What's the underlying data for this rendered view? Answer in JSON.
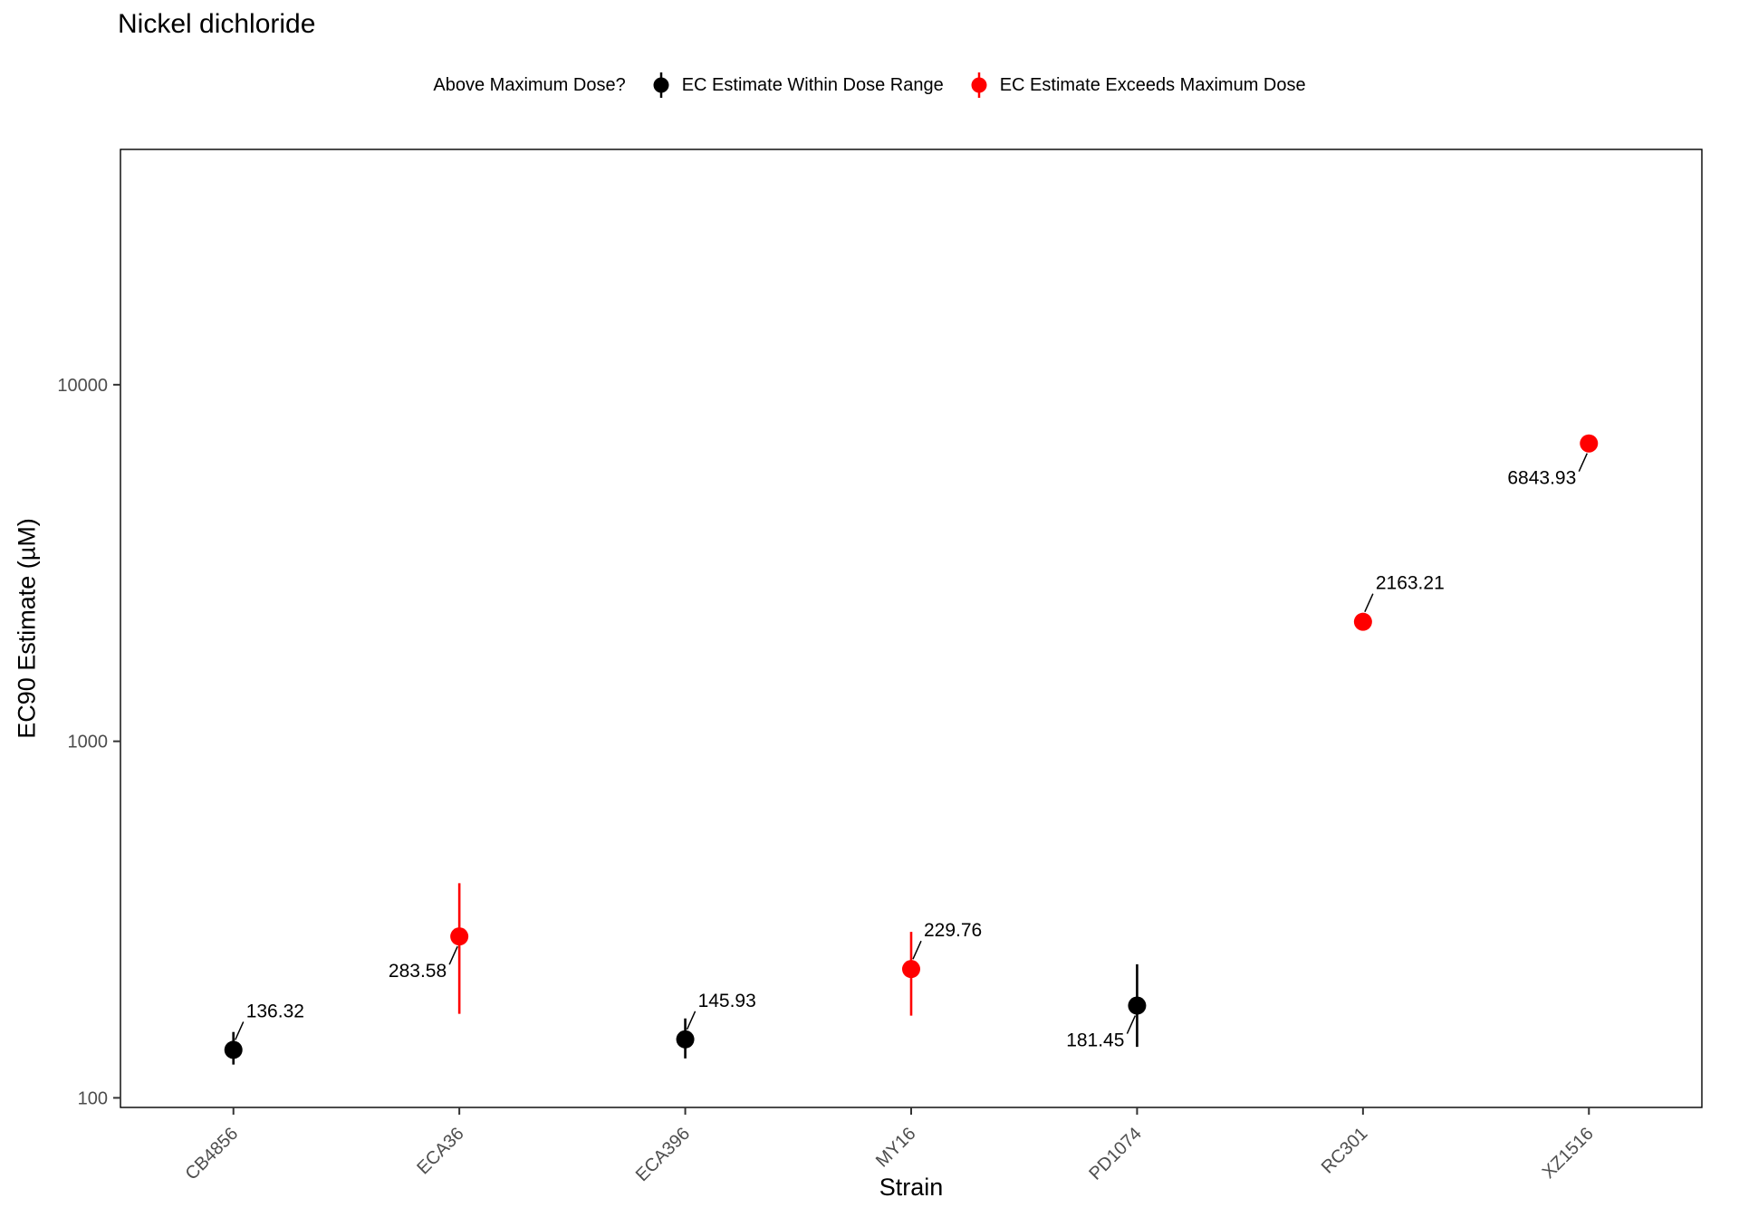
{
  "title": "Nickel dichloride",
  "legend": {
    "title": "Above Maximum Dose?",
    "items": [
      {
        "label": "EC Estimate Within Dose Range",
        "color": "#000000"
      },
      {
        "label": "EC Estimate Exceeds Maximum Dose",
        "color": "#FF0000"
      }
    ]
  },
  "chart_data": {
    "type": "scatter",
    "title": "Nickel dichloride",
    "xlabel": "Strain",
    "ylabel": "EC90 Estimate (µM)",
    "yscale": "log10",
    "ylim": [
      94,
      45700
    ],
    "yticks": [
      100,
      1000,
      10000
    ],
    "grid": false,
    "legend_position": "top",
    "categories": [
      "CB4856",
      "ECA36",
      "ECA396",
      "MY16",
      "PD1074",
      "RC301",
      "XZ1516"
    ],
    "points": [
      {
        "strain": "CB4856",
        "value": 136.32,
        "label": "136.32",
        "ci_lo": 124,
        "ci_hi": 153,
        "exceeds": false,
        "label_pos": "ne"
      },
      {
        "strain": "ECA36",
        "value": 283.58,
        "label": "283.58",
        "ci_lo": 172,
        "ci_hi": 400,
        "exceeds": true,
        "label_pos": "sw"
      },
      {
        "strain": "ECA396",
        "value": 145.93,
        "label": "145.93",
        "ci_lo": 129,
        "ci_hi": 167,
        "exceeds": false,
        "label_pos": "ne"
      },
      {
        "strain": "MY16",
        "value": 229.76,
        "label": "229.76",
        "ci_lo": 170,
        "ci_hi": 292,
        "exceeds": true,
        "label_pos": "ne"
      },
      {
        "strain": "PD1074",
        "value": 181.45,
        "label": "181.45",
        "ci_lo": 139,
        "ci_hi": 237,
        "exceeds": false,
        "label_pos": "sw"
      },
      {
        "strain": "RC301",
        "value": 2163.21,
        "label": "2163.21",
        "ci_lo": 2163.21,
        "ci_hi": 2163.21,
        "exceeds": true,
        "label_pos": "ne"
      },
      {
        "strain": "XZ1516",
        "value": 6843.93,
        "label": "6843.93",
        "ci_lo": 6843.93,
        "ci_hi": 6843.93,
        "exceeds": true,
        "label_pos": "sw"
      }
    ]
  }
}
